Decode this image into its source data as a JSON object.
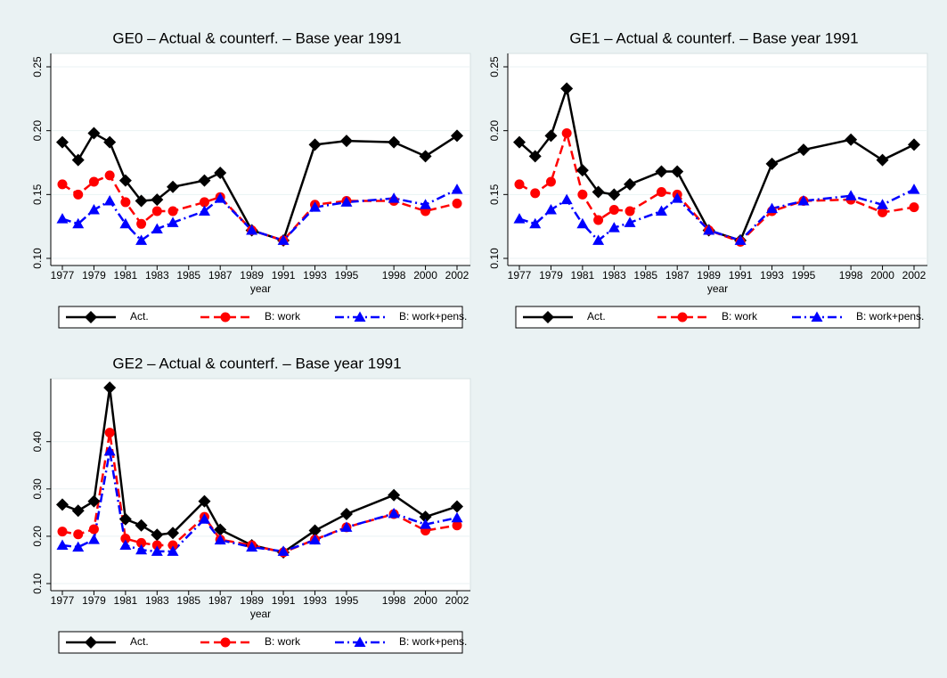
{
  "chart_data": [
    {
      "type": "line",
      "title": "GE0 – Actual & counterf. – Base year 1991",
      "xlabel": "year",
      "x": [
        1977,
        1978,
        1979,
        1980,
        1981,
        1982,
        1983,
        1984,
        1986,
        1987,
        1989,
        1991,
        1993,
        1995,
        1998,
        2000,
        2002
      ],
      "xlim": [
        1977,
        2002
      ],
      "xticks": [
        1977,
        1979,
        1981,
        1983,
        1985,
        1987,
        1989,
        1991,
        1993,
        1995,
        1998,
        2000,
        2002
      ],
      "ylim": [
        0.1,
        0.25
      ],
      "yticks": [
        {
          "value": 0.1,
          "label": "0.10"
        },
        0.15,
        {
          "value": 0.2,
          "label": "0.20"
        },
        0.25
      ],
      "grid": true,
      "series": [
        {
          "name": "Act.",
          "color": "#000000",
          "values": [
            0.191,
            0.177,
            0.198,
            0.191,
            0.161,
            0.145,
            0.146,
            0.156,
            0.161,
            0.167,
            0.122,
            0.114,
            0.189,
            0.192,
            0.191,
            0.18,
            0.196
          ]
        },
        {
          "name": "B: work",
          "color": "#ff0000",
          "values": [
            0.158,
            0.15,
            0.16,
            0.165,
            0.144,
            0.127,
            0.137,
            0.137,
            0.144,
            0.148,
            0.122,
            0.114,
            0.142,
            0.145,
            0.145,
            0.137,
            0.143
          ]
        },
        {
          "name": "B: work+pens.",
          "color": "#0000ff",
          "values": [
            0.131,
            0.127,
            0.138,
            0.145,
            0.127,
            0.114,
            0.123,
            0.128,
            0.137,
            0.147,
            0.122,
            0.114,
            0.14,
            0.144,
            0.147,
            0.142,
            0.154
          ]
        }
      ]
    },
    {
      "type": "line",
      "title": "GE1 – Actual & counterf. – Base year 1991",
      "xlabel": "year",
      "x": [
        1977,
        1978,
        1979,
        1980,
        1981,
        1982,
        1983,
        1984,
        1986,
        1987,
        1989,
        1991,
        1993,
        1995,
        1998,
        2000,
        2002
      ],
      "xlim": [
        1977,
        2002
      ],
      "xticks": [
        1977,
        1979,
        1981,
        1983,
        1985,
        1987,
        1989,
        1991,
        1993,
        1995,
        1998,
        2000,
        2002
      ],
      "ylim": [
        0.1,
        0.25
      ],
      "yticks": [
        {
          "value": 0.1,
          "label": "0.10"
        },
        0.15,
        {
          "value": 0.2,
          "label": "0.20"
        },
        0.25
      ],
      "grid": true,
      "series": [
        {
          "name": "Act.",
          "color": "#000000",
          "values": [
            0.191,
            0.18,
            0.196,
            0.233,
            0.169,
            0.152,
            0.15,
            0.158,
            0.168,
            0.168,
            0.122,
            0.114,
            0.174,
            0.185,
            0.193,
            0.177,
            0.189
          ]
        },
        {
          "name": "B: work",
          "color": "#ff0000",
          "values": [
            0.158,
            0.151,
            0.16,
            0.198,
            0.15,
            0.13,
            0.138,
            0.137,
            0.152,
            0.15,
            0.122,
            0.113,
            0.137,
            0.145,
            0.146,
            0.136,
            0.14
          ]
        },
        {
          "name": "B: work+pens.",
          "color": "#0000ff",
          "values": [
            0.131,
            0.127,
            0.138,
            0.146,
            0.127,
            0.114,
            0.124,
            0.128,
            0.137,
            0.147,
            0.122,
            0.114,
            0.139,
            0.145,
            0.149,
            0.142,
            0.154
          ]
        }
      ]
    },
    {
      "type": "line",
      "title": "GE2 – Actual & counterf. – Base year 1991",
      "xlabel": "year",
      "x": [
        1977,
        1978,
        1979,
        1980,
        1981,
        1982,
        1983,
        1984,
        1986,
        1987,
        1989,
        1991,
        1993,
        1995,
        1998,
        2000,
        2002
      ],
      "xlim": [
        1977,
        2002
      ],
      "xticks": [
        1977,
        1979,
        1981,
        1983,
        1985,
        1987,
        1989,
        1991,
        1993,
        1995,
        1998,
        2000,
        2002
      ],
      "ylim": [
        0.1,
        0.52
      ],
      "yticks": [
        {
          "value": 0.1,
          "label": "0.10"
        },
        {
          "value": 0.2,
          "label": "0.20"
        },
        {
          "value": 0.3,
          "label": "0.30"
        },
        {
          "value": 0.4,
          "label": "0.40"
        }
      ],
      "grid": true,
      "series": [
        {
          "name": "Act.",
          "color": "#000000",
          "values": [
            0.267,
            0.254,
            0.274,
            0.514,
            0.236,
            0.223,
            0.203,
            0.207,
            0.274,
            0.214,
            0.181,
            0.166,
            0.212,
            0.247,
            0.287,
            0.241,
            0.263
          ]
        },
        {
          "name": "B: work",
          "color": "#ff0000",
          "values": [
            0.21,
            0.204,
            0.215,
            0.419,
            0.195,
            0.186,
            0.181,
            0.181,
            0.241,
            0.193,
            0.181,
            0.166,
            0.193,
            0.219,
            0.247,
            0.212,
            0.223
          ]
        },
        {
          "name": "B: work+pens.",
          "color": "#0000ff",
          "values": [
            0.181,
            0.177,
            0.193,
            0.38,
            0.181,
            0.171,
            0.168,
            0.168,
            0.236,
            0.192,
            0.177,
            0.168,
            0.192,
            0.219,
            0.248,
            0.225,
            0.239
          ]
        }
      ]
    }
  ]
}
